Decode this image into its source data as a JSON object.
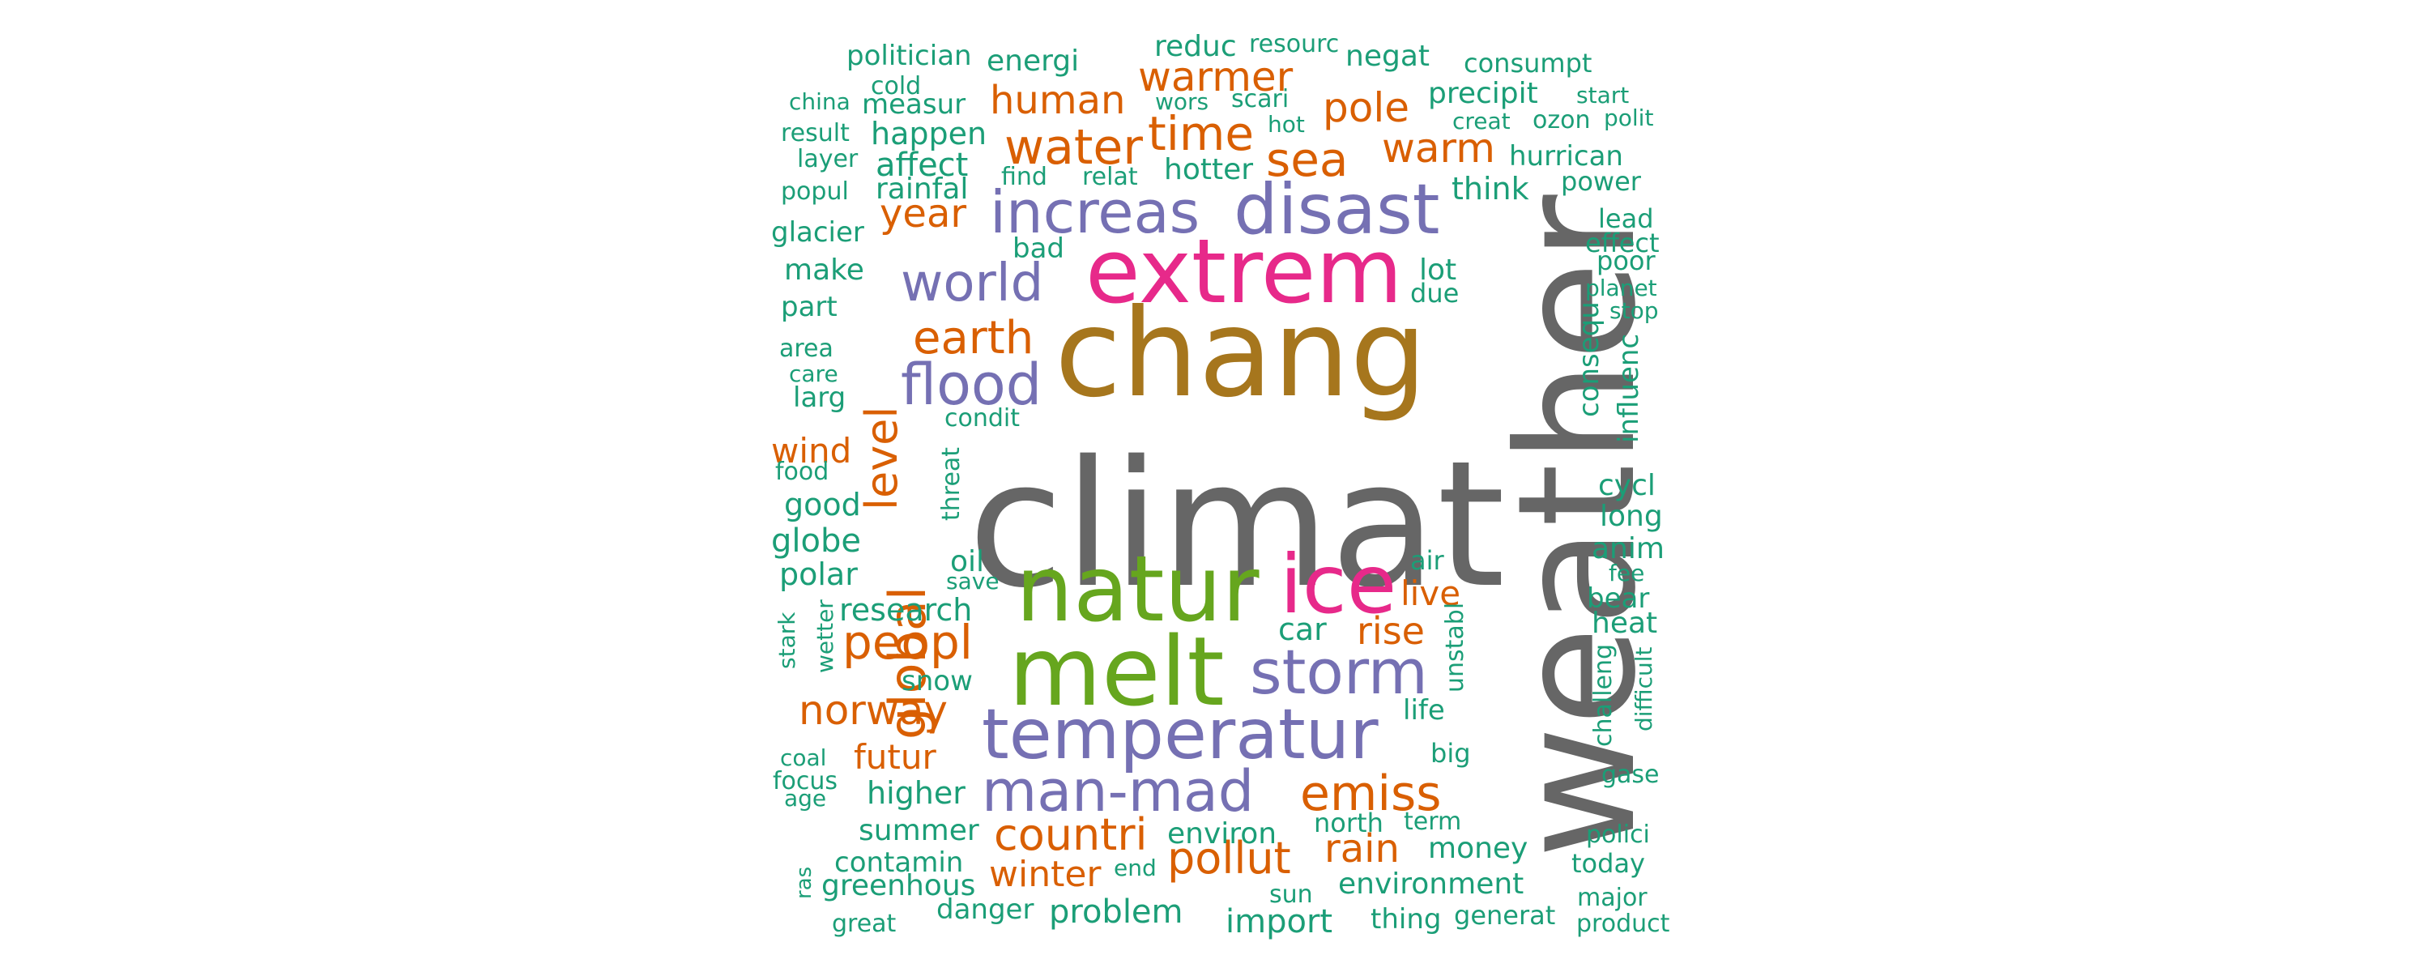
{
  "palette": {
    "gray": "#666666",
    "brown": "#a6761d",
    "magenta": "#e7298a",
    "green": "#66a61e",
    "purple": "#7570b3",
    "orange": "#d95f02",
    "teal": "#1b9e77"
  },
  "words": [
    {
      "text": "climat",
      "color": "gray"
    },
    {
      "text": "weather",
      "color": "gray",
      "vertical": true
    },
    {
      "text": "chang",
      "color": "brown"
    },
    {
      "text": "extrem",
      "color": "magenta"
    },
    {
      "text": "natur",
      "color": "green"
    },
    {
      "text": "ice",
      "color": "magenta"
    },
    {
      "text": "melt",
      "color": "green"
    },
    {
      "text": "temperatur",
      "color": "purple"
    },
    {
      "text": "disast",
      "color": "purple"
    },
    {
      "text": "increas",
      "color": "purple"
    },
    {
      "text": "storm",
      "color": "purple"
    },
    {
      "text": "man-mad",
      "color": "purple"
    },
    {
      "text": "world",
      "color": "purple"
    },
    {
      "text": "flood",
      "color": "purple"
    },
    {
      "text": "global",
      "color": "orange",
      "vertical": true
    },
    {
      "text": "level",
      "color": "orange",
      "vertical": true
    },
    {
      "text": "water",
      "color": "orange"
    },
    {
      "text": "time",
      "color": "orange"
    },
    {
      "text": "sea",
      "color": "orange"
    },
    {
      "text": "earth",
      "color": "orange"
    },
    {
      "text": "peopl",
      "color": "orange"
    },
    {
      "text": "emiss",
      "color": "orange"
    },
    {
      "text": "countri",
      "color": "orange"
    },
    {
      "text": "pollut",
      "color": "orange"
    },
    {
      "text": "norway",
      "color": "orange"
    },
    {
      "text": "warm",
      "color": "orange"
    },
    {
      "text": "pole",
      "color": "orange"
    },
    {
      "text": "warmer",
      "color": "orange"
    },
    {
      "text": "human",
      "color": "orange"
    },
    {
      "text": "year",
      "color": "orange"
    },
    {
      "text": "rise",
      "color": "orange"
    },
    {
      "text": "live",
      "color": "orange"
    },
    {
      "text": "rain",
      "color": "orange"
    },
    {
      "text": "winter",
      "color": "orange"
    },
    {
      "text": "futur",
      "color": "orange"
    },
    {
      "text": "wind",
      "color": "orange"
    },
    {
      "text": "politician",
      "color": "teal"
    },
    {
      "text": "energi",
      "color": "teal"
    },
    {
      "text": "reduc",
      "color": "teal"
    },
    {
      "text": "resourc",
      "color": "teal"
    },
    {
      "text": "negat",
      "color": "teal"
    },
    {
      "text": "consumpt",
      "color": "teal"
    },
    {
      "text": "cold",
      "color": "teal"
    },
    {
      "text": "china",
      "color": "teal"
    },
    {
      "text": "measur",
      "color": "teal"
    },
    {
      "text": "wors",
      "color": "teal"
    },
    {
      "text": "scari",
      "color": "teal"
    },
    {
      "text": "precipit",
      "color": "teal"
    },
    {
      "text": "start",
      "color": "teal"
    },
    {
      "text": "hot",
      "color": "teal"
    },
    {
      "text": "creat",
      "color": "teal"
    },
    {
      "text": "ozon",
      "color": "teal"
    },
    {
      "text": "polit",
      "color": "teal"
    },
    {
      "text": "result",
      "color": "teal"
    },
    {
      "text": "happen",
      "color": "teal"
    },
    {
      "text": "layer",
      "color": "teal"
    },
    {
      "text": "affect",
      "color": "teal"
    },
    {
      "text": "hotter",
      "color": "teal"
    },
    {
      "text": "hurrican",
      "color": "teal"
    },
    {
      "text": "popul",
      "color": "teal"
    },
    {
      "text": "rainfal",
      "color": "teal"
    },
    {
      "text": "find",
      "color": "teal"
    },
    {
      "text": "relat",
      "color": "teal"
    },
    {
      "text": "think",
      "color": "teal"
    },
    {
      "text": "power",
      "color": "teal"
    },
    {
      "text": "glacier",
      "color": "teal"
    },
    {
      "text": "bad",
      "color": "teal"
    },
    {
      "text": "lead",
      "color": "teal"
    },
    {
      "text": "effect",
      "color": "teal"
    },
    {
      "text": "make",
      "color": "teal"
    },
    {
      "text": "lot",
      "color": "teal"
    },
    {
      "text": "poor",
      "color": "teal"
    },
    {
      "text": "due",
      "color": "teal"
    },
    {
      "text": "planet",
      "color": "teal"
    },
    {
      "text": "part",
      "color": "teal"
    },
    {
      "text": "stop",
      "color": "teal"
    },
    {
      "text": "consequ",
      "color": "teal",
      "vertical": true
    },
    {
      "text": "area",
      "color": "teal"
    },
    {
      "text": "care",
      "color": "teal"
    },
    {
      "text": "influenc",
      "color": "teal",
      "vertical": true
    },
    {
      "text": "larg",
      "color": "teal"
    },
    {
      "text": "condit",
      "color": "teal"
    },
    {
      "text": "food",
      "color": "teal"
    },
    {
      "text": "threat",
      "color": "teal",
      "vertical": true
    },
    {
      "text": "cycl",
      "color": "teal"
    },
    {
      "text": "good",
      "color": "teal"
    },
    {
      "text": "long",
      "color": "teal"
    },
    {
      "text": "globe",
      "color": "teal"
    },
    {
      "text": "anim",
      "color": "teal"
    },
    {
      "text": "oil",
      "color": "teal"
    },
    {
      "text": "air",
      "color": "teal"
    },
    {
      "text": "polar",
      "color": "teal"
    },
    {
      "text": "save",
      "color": "teal"
    },
    {
      "text": "fee",
      "color": "teal"
    },
    {
      "text": "research",
      "color": "teal"
    },
    {
      "text": "bear",
      "color": "teal"
    },
    {
      "text": "car",
      "color": "teal"
    },
    {
      "text": "heat",
      "color": "teal"
    },
    {
      "text": "unstabl",
      "color": "teal",
      "vertical": true
    },
    {
      "text": "stark",
      "color": "teal",
      "vertical": true
    },
    {
      "text": "wetter",
      "color": "teal",
      "vertical": true
    },
    {
      "text": "snow",
      "color": "teal"
    },
    {
      "text": "challeng",
      "color": "teal",
      "vertical": true
    },
    {
      "text": "difficult",
      "color": "teal",
      "vertical": true
    },
    {
      "text": "life",
      "color": "teal"
    },
    {
      "text": "coal",
      "color": "teal"
    },
    {
      "text": "big",
      "color": "teal"
    },
    {
      "text": "focus",
      "color": "teal"
    },
    {
      "text": "gase",
      "color": "teal"
    },
    {
      "text": "higher",
      "color": "teal"
    },
    {
      "text": "age",
      "color": "teal"
    },
    {
      "text": "summer",
      "color": "teal"
    },
    {
      "text": "environ",
      "color": "teal"
    },
    {
      "text": "north",
      "color": "teal"
    },
    {
      "text": "term",
      "color": "teal"
    },
    {
      "text": "polici",
      "color": "teal"
    },
    {
      "text": "money",
      "color": "teal"
    },
    {
      "text": "contamin",
      "color": "teal"
    },
    {
      "text": "today",
      "color": "teal"
    },
    {
      "text": "ras",
      "color": "teal",
      "vertical": true
    },
    {
      "text": "end",
      "color": "teal"
    },
    {
      "text": "greenhous",
      "color": "teal"
    },
    {
      "text": "environment",
      "color": "teal"
    },
    {
      "text": "sun",
      "color": "teal"
    },
    {
      "text": "major",
      "color": "teal"
    },
    {
      "text": "problem",
      "color": "teal"
    },
    {
      "text": "danger",
      "color": "teal"
    },
    {
      "text": "import",
      "color": "teal"
    },
    {
      "text": "thing",
      "color": "teal"
    },
    {
      "text": "generat",
      "color": "teal"
    },
    {
      "text": "great",
      "color": "teal"
    },
    {
      "text": "product",
      "color": "teal"
    }
  ]
}
